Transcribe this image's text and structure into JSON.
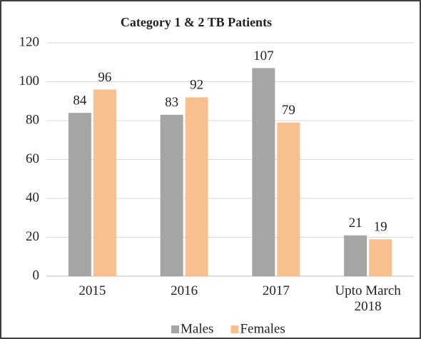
{
  "chart_data": {
    "type": "bar",
    "title": "Category 1 & 2 TB Patients",
    "categories": [
      "2015",
      "2016",
      "2017",
      "Upto March 2018"
    ],
    "series": [
      {
        "name": "Males",
        "color": "#a5a5a5",
        "values": [
          84,
          83,
          107,
          21
        ]
      },
      {
        "name": "Females",
        "color": "#f8c08f",
        "values": [
          96,
          92,
          79,
          19
        ]
      }
    ],
    "ylim": [
      0,
      120
    ],
    "yticks": [
      0,
      20,
      40,
      60,
      80,
      100,
      120
    ],
    "grid": true,
    "legend": "bottom"
  }
}
